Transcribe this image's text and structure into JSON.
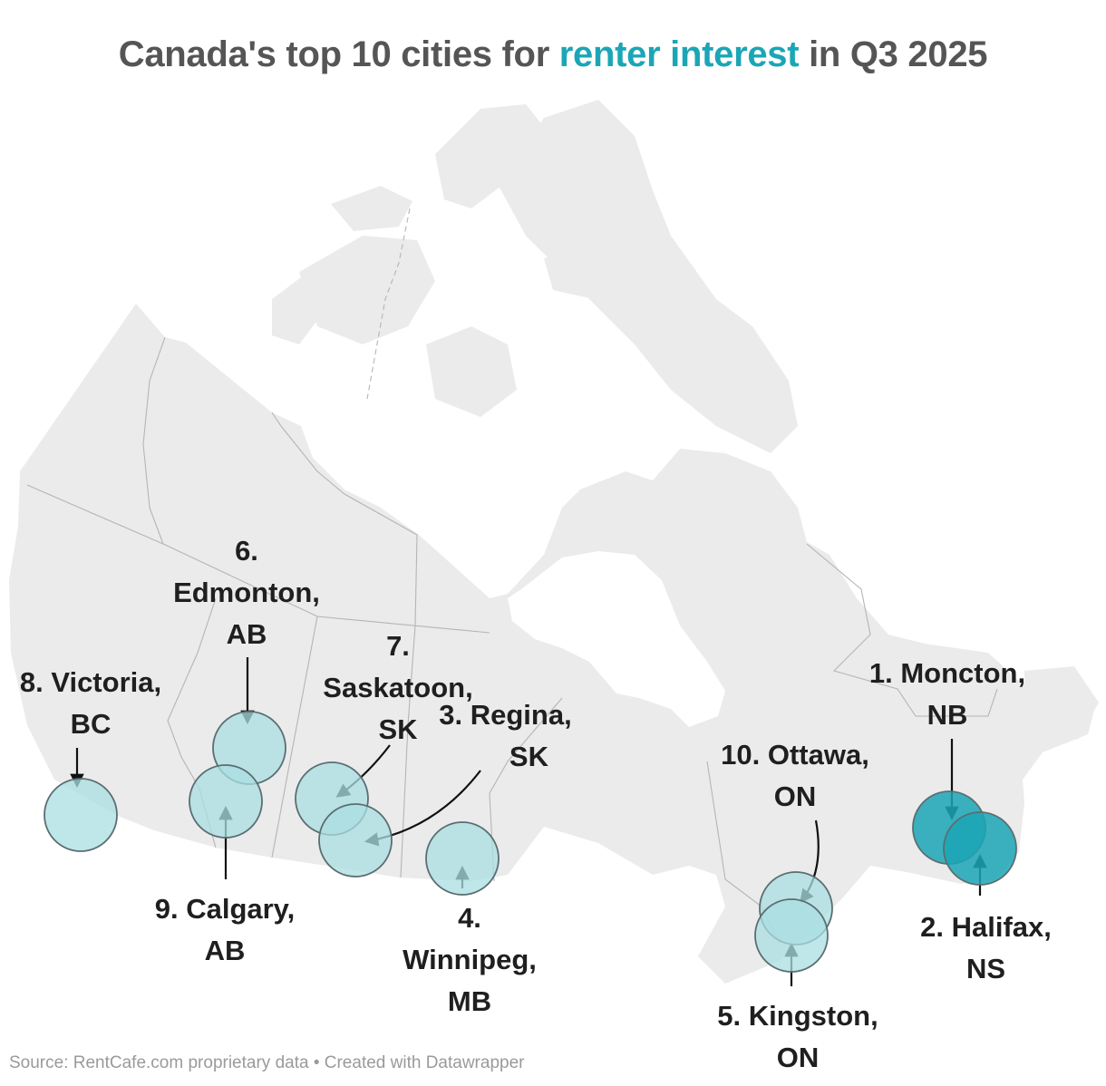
{
  "title": {
    "before": "Canada's top 10 cities for ",
    "highlight": "renter interest",
    "after": " in Q3 2025",
    "highlight_color": "#1ba6b6"
  },
  "source": "Source: RentCafe.com proprietary data • Created with Datawrapper",
  "colors": {
    "land": "#ebebeb",
    "border": "#b5b5b5",
    "top_rank_fill": "#1ba6b6",
    "other_rank_fill": "#a9dde2"
  },
  "cities": [
    {
      "rank": 1,
      "name": "Moncton",
      "province": "NB",
      "line1": "1. Moncton,",
      "line2": "NB",
      "emphasis": "high"
    },
    {
      "rank": 2,
      "name": "Halifax",
      "province": "NS",
      "line1": "2. Halifax,",
      "line2": "NS",
      "emphasis": "high"
    },
    {
      "rank": 3,
      "name": "Regina",
      "province": "SK",
      "line1": "3. Regina,",
      "line2": "SK",
      "emphasis": "normal"
    },
    {
      "rank": 4,
      "name": "Winnipeg",
      "province": "MB",
      "line1": "4.",
      "line2": "Winnipeg,",
      "line3": "MB",
      "emphasis": "normal"
    },
    {
      "rank": 5,
      "name": "Kingston",
      "province": "ON",
      "line1": "5. Kingston,",
      "line2": "ON",
      "emphasis": "normal"
    },
    {
      "rank": 6,
      "name": "Edmonton",
      "province": "AB",
      "line1": "6.",
      "line2": "Edmonton,",
      "line3": "AB",
      "emphasis": "normal"
    },
    {
      "rank": 7,
      "name": "Saskatoon",
      "province": "SK",
      "line1": "7.",
      "line2": "Saskatoon,",
      "line3": "SK",
      "emphasis": "normal"
    },
    {
      "rank": 8,
      "name": "Victoria",
      "province": "BC",
      "line1": "8. Victoria,",
      "line2": "BC",
      "emphasis": "normal"
    },
    {
      "rank": 9,
      "name": "Calgary",
      "province": "AB",
      "line1": "9. Calgary,",
      "line2": "AB",
      "emphasis": "normal"
    },
    {
      "rank": 10,
      "name": "Ottawa",
      "province": "ON",
      "line1": "10. Ottawa,",
      "line2": "ON",
      "emphasis": "normal"
    }
  ]
}
